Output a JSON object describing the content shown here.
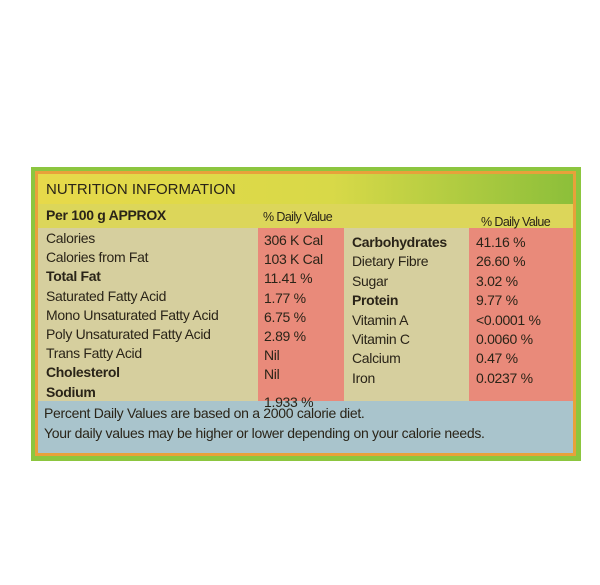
{
  "title": "NUTRITION INFORMATION",
  "per": "Per 100 g APPROX",
  "dv_header": "% Daily Value",
  "left": [
    {
      "label": "Calories",
      "value": "306 K Cal",
      "bold": false
    },
    {
      "label": "Calories from Fat",
      "value": "103 K Cal",
      "bold": false
    },
    {
      "label": "Total Fat",
      "value": "11.41 %",
      "bold": true
    },
    {
      "label": "Saturated Fatty Acid",
      "value": "1.77 %",
      "bold": false
    },
    {
      "label": "Mono Unsaturated Fatty Acid",
      "value": "6.75 %",
      "bold": false
    },
    {
      "label": "Poly Unsaturated Fatty Acid",
      "value": "2.89 %",
      "bold": false
    },
    {
      "label": "Trans Fatty Acid",
      "value": "Nil",
      "bold": false
    },
    {
      "label": "Cholesterol",
      "value": "Nil",
      "bold": true
    },
    {
      "label": "Sodium",
      "value": "1.933 %",
      "bold": true
    }
  ],
  "right": [
    {
      "label": "Carbohydrates",
      "value": "41.16 %",
      "bold": true
    },
    {
      "label": "Dietary Fibre",
      "value": "26.60 %",
      "bold": false
    },
    {
      "label": "Sugar",
      "value": "3.02 %",
      "bold": false
    },
    {
      "label": "Protein",
      "value": "9.77 %",
      "bold": true
    },
    {
      "label": "Vitamin A",
      "value": "<0.0001 %",
      "bold": false
    },
    {
      "label": "Vitamin C",
      "value": "0.0060 %",
      "bold": false
    },
    {
      "label": "Calcium",
      "value": "0.47 %",
      "bold": false
    },
    {
      "label": "Iron",
      "value": "0.0237 %",
      "bold": false
    }
  ],
  "footer": [
    "Percent Daily Values are based on a 2000 calorie diet.",
    "Your daily values may be higher or lower depending on your calorie needs."
  ],
  "colors": {
    "border_green": "#8cc63f",
    "border_orange": "#e8a13a",
    "value_column": "#e98a7a",
    "label_area": "#d6cf9e",
    "footer": "#a9c4cc",
    "header": "#e7d94a"
  }
}
